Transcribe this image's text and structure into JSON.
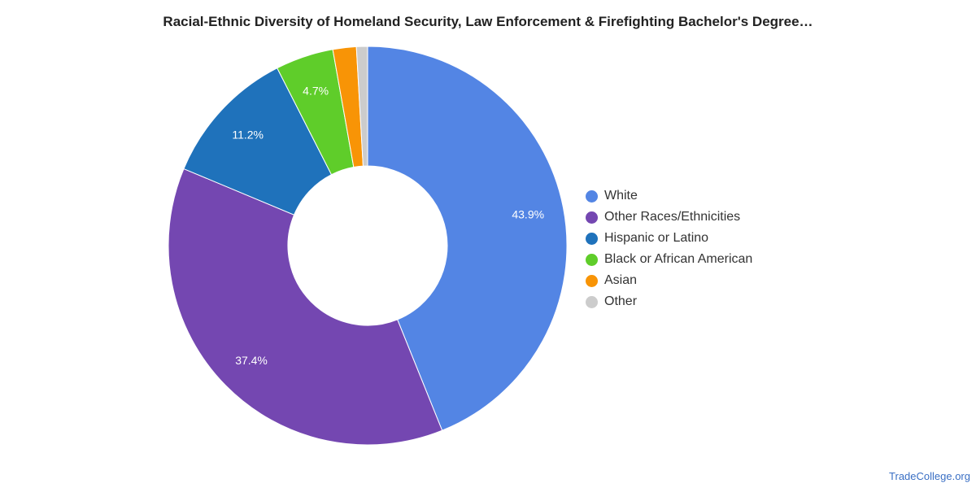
{
  "chart_data": {
    "type": "pie",
    "title": "Racial-Ethnic Diversity of Homeland Security, Law Enforcement & Firefighting Bachelor's Degree…",
    "slices": [
      {
        "label": "White",
        "value": 43.9,
        "value_label": "43.9%",
        "color": "#5385e4"
      },
      {
        "label": "Other Races/Ethnicities",
        "value": 37.4,
        "value_label": "37.4%",
        "color": "#7447b1"
      },
      {
        "label": "Hispanic or Latino",
        "value": 11.2,
        "value_label": "11.2%",
        "color": "#1f72bb"
      },
      {
        "label": "Black or African American",
        "value": 4.7,
        "value_label": "4.7%",
        "color": "#5fcd2a"
      },
      {
        "label": "Asian",
        "value": 1.9,
        "value_label": "",
        "color": "#f89406"
      },
      {
        "label": "Other",
        "value": 0.9,
        "value_label": "",
        "color": "#cccccc"
      }
    ],
    "donut": true,
    "legend_position": "right"
  },
  "source": {
    "label": "TradeCollege.org"
  }
}
